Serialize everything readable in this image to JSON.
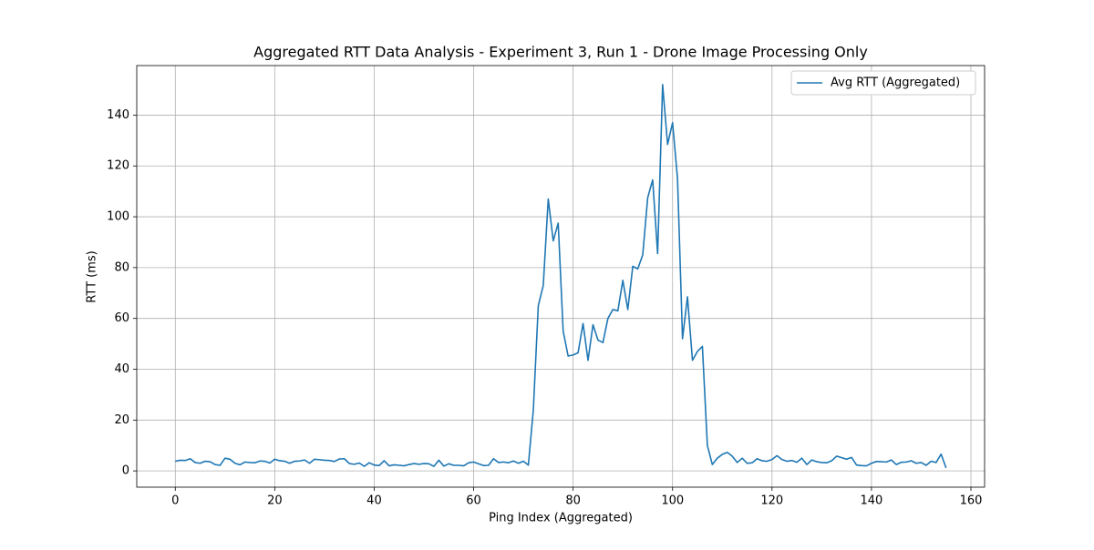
{
  "chart_data": {
    "type": "line",
    "title": "Aggregated RTT Data Analysis - Experiment 3, Run 1 - Drone Image Processing Only",
    "xlabel": "Ping Index (Aggregated)",
    "ylabel": "RTT (ms)",
    "x": [
      0,
      1,
      2,
      3,
      4,
      5,
      6,
      7,
      8,
      9,
      10,
      11,
      12,
      13,
      14,
      15,
      16,
      17,
      18,
      19,
      20,
      21,
      22,
      23,
      24,
      25,
      26,
      27,
      28,
      29,
      30,
      31,
      32,
      33,
      34,
      35,
      36,
      37,
      38,
      39,
      40,
      41,
      42,
      43,
      44,
      45,
      46,
      47,
      48,
      49,
      50,
      51,
      52,
      53,
      54,
      55,
      56,
      57,
      58,
      59,
      60,
      61,
      62,
      63,
      64,
      65,
      66,
      67,
      68,
      69,
      70,
      71,
      72,
      73,
      74,
      75,
      76,
      77,
      78,
      79,
      80,
      81,
      82,
      83,
      84,
      85,
      86,
      87,
      88,
      89,
      90,
      91,
      92,
      93,
      94,
      95,
      96,
      97,
      98,
      99,
      100,
      101,
      102,
      103,
      104,
      105,
      106,
      107,
      108,
      109,
      110,
      111,
      112,
      113,
      114,
      115,
      116,
      117,
      118,
      119,
      120,
      121,
      122,
      123,
      124,
      125,
      126,
      127,
      128,
      129,
      130,
      131,
      132,
      133,
      134,
      135,
      136,
      137,
      138,
      139,
      140,
      141,
      142,
      143,
      144,
      145,
      146,
      147,
      148,
      149,
      150,
      151,
      152,
      153,
      154,
      155
    ],
    "series": [
      {
        "name": "Avg RTT (Aggregated)",
        "color": "#1f77b4",
        "values": [
          3.8,
          4.2,
          4.1,
          4.8,
          3.3,
          3.0,
          3.8,
          3.6,
          2.5,
          2.2,
          5.0,
          4.6,
          3.0,
          2.4,
          3.5,
          3.3,
          3.2,
          3.9,
          3.8,
          3.1,
          4.6,
          4.0,
          3.8,
          3.0,
          3.8,
          3.9,
          4.3,
          3.0,
          4.6,
          4.4,
          4.2,
          4.1,
          3.7,
          4.7,
          4.8,
          2.9,
          2.6,
          3.1,
          1.8,
          3.2,
          2.3,
          2.1,
          4.0,
          2.0,
          2.4,
          2.2,
          2.0,
          2.5,
          2.9,
          2.6,
          2.9,
          2.8,
          1.8,
          4.2,
          1.9,
          2.8,
          2.2,
          2.2,
          2.0,
          3.2,
          3.5,
          2.8,
          2.1,
          2.2,
          4.8,
          3.3,
          3.5,
          3.2,
          3.9,
          3.0,
          3.8,
          2.3,
          24,
          65,
          73,
          107,
          90.5,
          97.5,
          55,
          45.2,
          45.6,
          46.5,
          58,
          43.5,
          57.5,
          51.5,
          50.5,
          60,
          63.5,
          63,
          75,
          63.5,
          80.5,
          79.5,
          85,
          107.5,
          114.5,
          85.5,
          152,
          128.5,
          137,
          115,
          52,
          68.5,
          43.5,
          47,
          49,
          10,
          2.5,
          5.0,
          6.5,
          7.3,
          5.8,
          3.3,
          5.0,
          3.0,
          3.2,
          4.8,
          4.0,
          3.8,
          4.5,
          6.0,
          4.5,
          3.8,
          4.1,
          3.4,
          5.0,
          2.5,
          4.3,
          3.6,
          3.3,
          3.2,
          4.0,
          5.8,
          5.2,
          4.6,
          5.3,
          2.3,
          2.1,
          2.0,
          3.0,
          3.7,
          3.6,
          3.5,
          4.3,
          2.5,
          3.4,
          3.5,
          4.0,
          3.0,
          3.3,
          2.2,
          3.8,
          3.3,
          6.6,
          1.2
        ]
      }
    ],
    "xlim": [
      -7.75,
      162.75
    ],
    "ylim": [
      -6.4,
      159.5
    ],
    "xticks": [
      0,
      20,
      40,
      60,
      80,
      100,
      120,
      140,
      160
    ],
    "yticks": [
      0,
      20,
      40,
      60,
      80,
      100,
      120,
      140
    ],
    "grid": true,
    "legend": "upper right"
  }
}
